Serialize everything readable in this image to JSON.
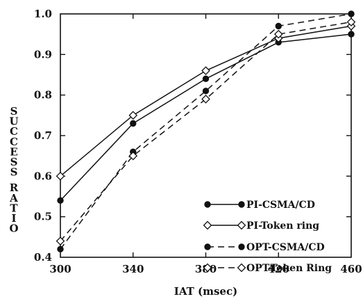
{
  "chart_data": {
    "type": "line",
    "title": "",
    "xlabel": "IAT (msec)",
    "ylabel": "SUCCESS RATIO",
    "x": [
      300,
      340,
      380,
      420,
      460
    ],
    "xlim": [
      300,
      460
    ],
    "ylim": [
      0.4,
      1.0
    ],
    "x_ticks": [
      "300",
      "340",
      "380",
      "420",
      "460"
    ],
    "y_ticks": [
      "0.4",
      "0.5",
      "0.6",
      "0.7",
      "0.8",
      "0.9",
      "1.0"
    ],
    "grid": false,
    "legend_position": "lower-right",
    "series": [
      {
        "name": "PI-CSMA/CD",
        "line": "solid",
        "marker": "filled-circle",
        "values": [
          0.54,
          0.73,
          0.84,
          0.93,
          0.95
        ]
      },
      {
        "name": "PI-Token ring",
        "line": "solid",
        "marker": "open-diamond",
        "values": [
          0.6,
          0.75,
          0.86,
          0.94,
          0.97
        ]
      },
      {
        "name": "OPT-CSMA/CD",
        "line": "dashed",
        "marker": "filled-circle",
        "values": [
          0.42,
          0.66,
          0.81,
          0.97,
          1.0
        ]
      },
      {
        "name": "OPT-Token Ring",
        "line": "dashed",
        "marker": "open-diamond",
        "values": [
          0.44,
          0.65,
          0.79,
          0.95,
          0.98
        ]
      }
    ]
  }
}
